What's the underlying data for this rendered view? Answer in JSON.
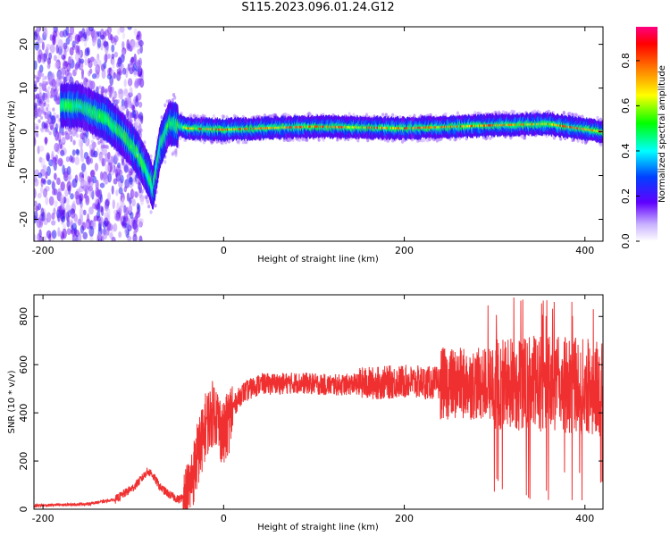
{
  "title": "S115.2023.096.01.24.G12",
  "chart_data": [
    {
      "type": "heatmap",
      "xlabel": "Height of straight line (km)",
      "ylabel": "Frequency (Hz)",
      "xlim": [
        -210,
        420
      ],
      "ylim": [
        -25,
        24
      ],
      "xticks": [
        -200,
        0,
        200,
        400
      ],
      "yticks": [
        -20,
        -10,
        0,
        10,
        20
      ],
      "colorbar": {
        "label": "Normalized spectral amplitude",
        "range": [
          0,
          0.95
        ],
        "ticks": [
          "0.0",
          "0.2",
          "0.4",
          "0.6",
          "0.8"
        ]
      },
      "ridge": [
        {
          "x": -160,
          "y": 6
        },
        {
          "x": -130,
          "y": 3
        },
        {
          "x": -110,
          "y": -1
        },
        {
          "x": -95,
          "y": -5
        },
        {
          "x": -85,
          "y": -9
        },
        {
          "x": -78,
          "y": -13
        },
        {
          "x": -70,
          "y": -3
        },
        {
          "x": -60,
          "y": 2
        },
        {
          "x": -40,
          "y": 0.8
        },
        {
          "x": 0,
          "y": 0.5
        },
        {
          "x": 100,
          "y": 1.2
        },
        {
          "x": 200,
          "y": 0.8
        },
        {
          "x": 300,
          "y": 1.5
        },
        {
          "x": 360,
          "y": 1.8
        },
        {
          "x": 420,
          "y": 0
        }
      ]
    },
    {
      "type": "line",
      "xlabel": "Height of straight line (km)",
      "ylabel": "SNR (10 * v/v)",
      "xlim": [
        -210,
        420
      ],
      "ylim": [
        0,
        890
      ],
      "xticks": [
        -200,
        0,
        200,
        400
      ],
      "yticks": [
        0,
        200,
        400,
        600,
        800
      ],
      "color": "#f03030",
      "series": [
        {
          "x": [
            -210,
            -180,
            -150,
            -120,
            -100,
            -90,
            -85,
            -80,
            -75,
            -70,
            -60,
            -50,
            -40,
            -30,
            -20,
            -10,
            0,
            10,
            20,
            40,
            60,
            80,
            100,
            120,
            150,
            200,
            250,
            300,
            350,
            400,
            420
          ],
          "values": [
            15,
            18,
            22,
            40,
            90,
            130,
            155,
            150,
            120,
            90,
            60,
            40,
            60,
            200,
            350,
            410,
            300,
            420,
            480,
            520,
            520,
            525,
            520,
            515,
            520,
            530,
            520,
            520,
            520,
            510,
            500
          ]
        }
      ]
    }
  ]
}
